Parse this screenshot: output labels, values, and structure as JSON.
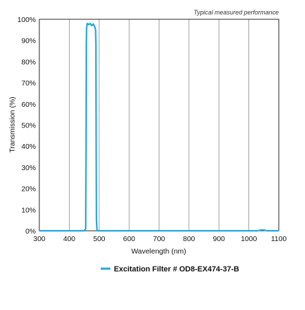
{
  "note": "Typical measured performance",
  "chart_data": {
    "type": "line",
    "title": "",
    "xlabel": "Wavelength (nm)",
    "ylabel": "Transmission (%)",
    "xlim": [
      300,
      1100
    ],
    "ylim": [
      0,
      100
    ],
    "x_ticks": [
      300,
      400,
      500,
      600,
      700,
      800,
      900,
      1000,
      1100
    ],
    "x_tick_labels": [
      "300",
      "400",
      "500",
      "600",
      "700",
      "800",
      "900",
      "1000",
      "1100"
    ],
    "y_ticks": [
      0,
      10,
      20,
      30,
      40,
      50,
      60,
      70,
      80,
      90,
      100
    ],
    "y_tick_labels": [
      "0%",
      "10%",
      "20%",
      "30%",
      "40%",
      "50%",
      "60%",
      "70%",
      "80%",
      "90%",
      "100%"
    ],
    "grid": "vertical",
    "legend_position": "bottom-center",
    "series": [
      {
        "name": "Excitation Filter # OD8-EX474-37-B",
        "color": "#1ea7e1",
        "x": [
          300,
          450,
          455,
          456,
          457,
          458,
          460,
          465,
          470,
          475,
          480,
          485,
          488,
          489,
          490,
          491,
          493,
          500,
          800,
          1000,
          1030,
          1040,
          1050,
          1060,
          1100
        ],
        "y": [
          0,
          0,
          1,
          40,
          88,
          96,
          98,
          97.5,
          98,
          97,
          97.8,
          96.5,
          95,
          88,
          40,
          5,
          0,
          0,
          0,
          0,
          0,
          0.4,
          0.4,
          0,
          0
        ]
      }
    ]
  }
}
